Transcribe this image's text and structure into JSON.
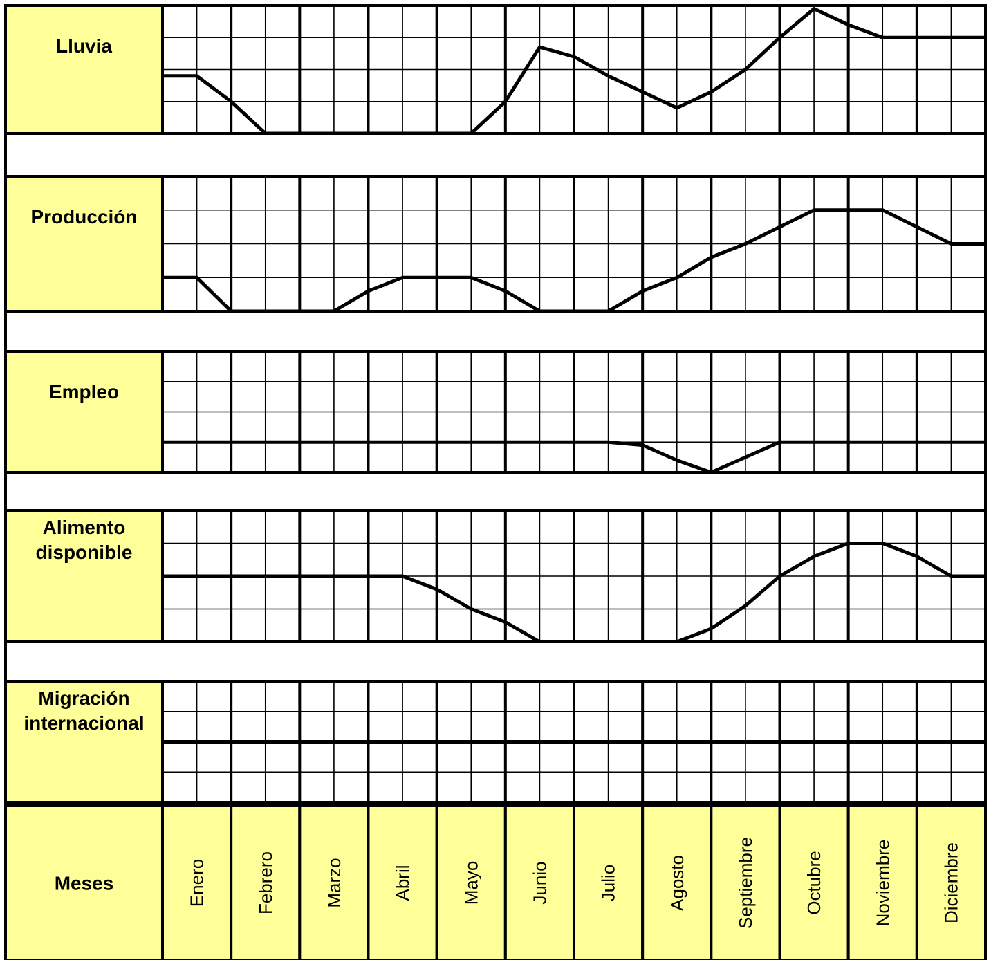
{
  "chart_data": {
    "type": "line",
    "subcolumns_per_month": 2,
    "y_scale": "relative levels 0 (low) to 4 (high), one per horizontal grid row",
    "months": [
      "Enero",
      "Febrero",
      "Marzo",
      "Abril",
      "Mayo",
      "Junio",
      "Julio",
      "Agosto",
      "Septiembre",
      "Octubre",
      "Noviembre",
      "Diciembre"
    ],
    "row_header": "Meses",
    "colors": {
      "label_fill": "#ffff99",
      "line": "#000000",
      "grid": "#000000"
    },
    "panels": [
      {
        "label": "Lluvia",
        "label_lines": [
          "Lluvia"
        ],
        "ylim": [
          0,
          4
        ],
        "points": [
          [
            0,
            1.8
          ],
          [
            0.5,
            1.8
          ],
          [
            1,
            1
          ],
          [
            1.5,
            0
          ],
          [
            2,
            0
          ],
          [
            2.5,
            0
          ],
          [
            3,
            0
          ],
          [
            3.5,
            0
          ],
          [
            4,
            0
          ],
          [
            4.5,
            0
          ],
          [
            5,
            1
          ],
          [
            5.5,
            2.7
          ],
          [
            6,
            2.4
          ],
          [
            6.5,
            1.8
          ],
          [
            7,
            1.3
          ],
          [
            7.5,
            0.8
          ],
          [
            8,
            1.3
          ],
          [
            8.5,
            2
          ],
          [
            9,
            3
          ],
          [
            9.5,
            3.9
          ],
          [
            10,
            3.4
          ],
          [
            10.5,
            3
          ],
          [
            11,
            3
          ],
          [
            11.5,
            3
          ],
          [
            12,
            3
          ]
        ]
      },
      {
        "label": "Producción",
        "label_lines": [
          "Producción"
        ],
        "ylim": [
          0,
          4
        ],
        "points": [
          [
            0,
            1
          ],
          [
            0.5,
            1
          ],
          [
            1,
            0
          ],
          [
            1.5,
            0
          ],
          [
            2,
            0
          ],
          [
            2.5,
            0
          ],
          [
            3,
            0.6
          ],
          [
            3.5,
            1
          ],
          [
            4,
            1
          ],
          [
            4.5,
            1
          ],
          [
            5,
            0.6
          ],
          [
            5.5,
            0
          ],
          [
            6,
            0
          ],
          [
            6.5,
            0
          ],
          [
            7,
            0.6
          ],
          [
            7.5,
            1
          ],
          [
            8,
            1.6
          ],
          [
            8.5,
            2
          ],
          [
            9,
            2.5
          ],
          [
            9.5,
            3
          ],
          [
            10,
            3
          ],
          [
            10.5,
            3
          ],
          [
            11,
            2.5
          ],
          [
            11.5,
            2
          ],
          [
            12,
            2
          ]
        ]
      },
      {
        "label": "Empleo",
        "label_lines": [
          "Empleo"
        ],
        "ylim": [
          0,
          4
        ],
        "points": [
          [
            0,
            1
          ],
          [
            6.5,
            1
          ],
          [
            7,
            0.9
          ],
          [
            7.5,
            0.4
          ],
          [
            8,
            0
          ],
          [
            8.5,
            0.5
          ],
          [
            9,
            1
          ],
          [
            12,
            1
          ]
        ]
      },
      {
        "label": "Alimento disponible",
        "label_lines": [
          "Alimento",
          "disponible"
        ],
        "ylim": [
          0,
          4
        ],
        "points": [
          [
            0,
            2
          ],
          [
            1,
            2
          ],
          [
            2,
            2
          ],
          [
            3,
            2
          ],
          [
            3.5,
            2
          ],
          [
            4,
            1.6
          ],
          [
            4.5,
            1
          ],
          [
            5,
            0.6
          ],
          [
            5.5,
            0
          ],
          [
            6,
            0
          ],
          [
            7,
            0
          ],
          [
            7.5,
            0
          ],
          [
            8,
            0.4
          ],
          [
            8.5,
            1.1
          ],
          [
            9,
            2
          ],
          [
            9.5,
            2.6
          ],
          [
            10,
            3
          ],
          [
            10.5,
            3
          ],
          [
            11,
            2.6
          ],
          [
            11.5,
            2
          ],
          [
            12,
            2
          ]
        ]
      },
      {
        "label": "Migración internacional",
        "label_lines": [
          "Migración",
          "internacional"
        ],
        "ylim": [
          0,
          4
        ],
        "points": [
          [
            0,
            2
          ],
          [
            12,
            2
          ]
        ]
      }
    ]
  }
}
